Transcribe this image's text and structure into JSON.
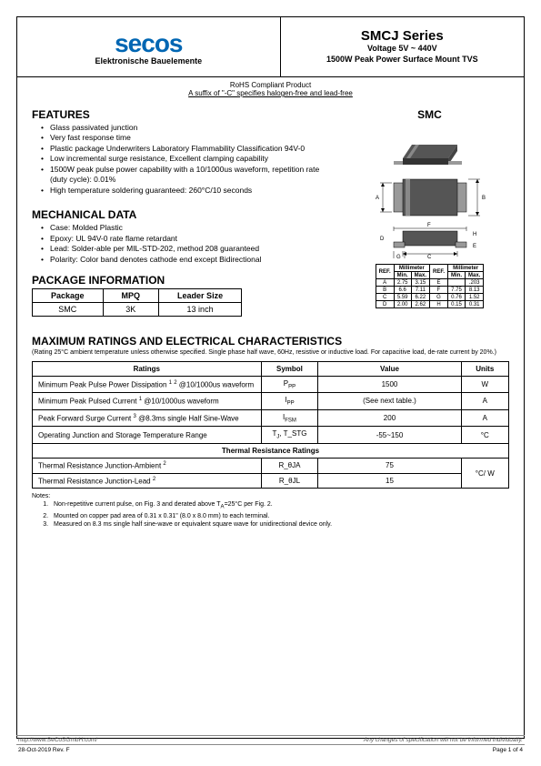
{
  "header": {
    "logo_text": "secos",
    "logo_sub": "Elektronische Bauelemente",
    "series_title": "SMCJ Series",
    "voltage": "Voltage 5V ~ 440V",
    "power": "1500W Peak Power Surface Mount TVS"
  },
  "rohs": {
    "line1": "RoHS Compliant Product",
    "line2": "A suffix of \"-C\" specifies halogen-free and lead-free"
  },
  "features": {
    "title": "FEATURES",
    "items": [
      "Glass passivated junction",
      "Very fast response time",
      "Plastic package Underwriters Laboratory Flammability Classification 94V-0",
      "Low incremental surge resistance, Excellent clamping capability",
      "1500W peak pulse power capability with a 10/1000us waveform, repetition rate (duty cycle): 0.01%",
      "High temperature soldering guaranteed: 260°C/10 seconds"
    ]
  },
  "mechanical": {
    "title": "MECHANICAL DATA",
    "items": [
      "Case: Molded Plastic",
      "Epoxy: UL 94V-0 rate flame retardant",
      "Lead: Solder-able per MIL-STD-202, method 208 guaranteed",
      "Polarity: Color band denotes cathode end except Bidirectional"
    ]
  },
  "package_info": {
    "title": "PACKAGE INFORMATION",
    "headers": [
      "Package",
      "MPQ",
      "Leader Size"
    ],
    "row": [
      "SMC",
      "3K",
      "13 inch"
    ]
  },
  "smc_label": "SMC",
  "dim_table": {
    "headers_top": [
      "REF.",
      "Millimeter",
      "REF.",
      "Millimeter"
    ],
    "headers_sub": [
      "Min.",
      "Max.",
      "Min.",
      "Max."
    ],
    "rows": [
      [
        "A",
        "2.75",
        "3.15",
        "E",
        "",
        ".203"
      ],
      [
        "B",
        "6.6",
        "7.11",
        "F",
        "7.75",
        "8.13"
      ],
      [
        "C",
        "5.59",
        "6.22",
        "G",
        "0.76",
        "1.52"
      ],
      [
        "D",
        "2.00",
        "2.62",
        "H",
        "0.15",
        "0.31"
      ]
    ]
  },
  "ratings": {
    "title": "MAXIMUM RATINGS AND ELECTRICAL CHARACTERISTICS",
    "note": "(Rating 25°C ambient temperature unless otherwise specified. Single phase half wave, 60Hz, resistive or inductive load. For capacitive load, de-rate current by 20%.)",
    "headers": [
      "Ratings",
      "Symbol",
      "Value",
      "Units"
    ],
    "rows": [
      {
        "r": "Minimum Peak Pulse Power Dissipation ¹ ² @10/1000us waveform",
        "s": "P_PP",
        "v": "1500",
        "u": "W"
      },
      {
        "r": "Minimum Peak Pulsed Current ¹ @10/1000us waveform",
        "s": "I_PP",
        "v": "(See next table.)",
        "u": "A"
      },
      {
        "r": "Peak Forward Surge Current ³ @8.3ms single Half Sine-Wave",
        "s": "I_FSM",
        "v": "200",
        "u": "A"
      },
      {
        "r": "Operating Junction and Storage Temperature Range",
        "s": "T_J, T_STG",
        "v": "-55~150",
        "u": "°C"
      }
    ],
    "thermal_title": "Thermal Resistance Ratings",
    "thermal_rows": [
      {
        "r": "Thermal Resistance Junction-Ambient ²",
        "s": "R_θJA",
        "v": "75"
      },
      {
        "r": "Thermal Resistance Junction-Lead ²",
        "s": "R_θJL",
        "v": "15"
      }
    ],
    "thermal_unit": "°C/ W"
  },
  "notes": {
    "title": "Notes:",
    "items": [
      "Non-repetitive current pulse, on Fig. 3 and derated above T_A=25°C per Fig. 2.",
      "Mounted on copper pad area of 0.31 x 0.31\" (8.0 x 8.0 mm) to each terminal.",
      "Measured on 8.3 ms single half sine-wave or equivalent square wave for unidirectional device only."
    ]
  },
  "footer": {
    "url": "http://www.SeCoSGmbH.com/",
    "disclaimer": "Any changes of specification will not be informed individually.",
    "rev": "28-Oct-2019 Rev. F",
    "page": "Page  1  of  4"
  },
  "colors": {
    "logo": "#0066b3",
    "component_body": "#6b6b6b",
    "component_lead": "#a8a8a8"
  }
}
